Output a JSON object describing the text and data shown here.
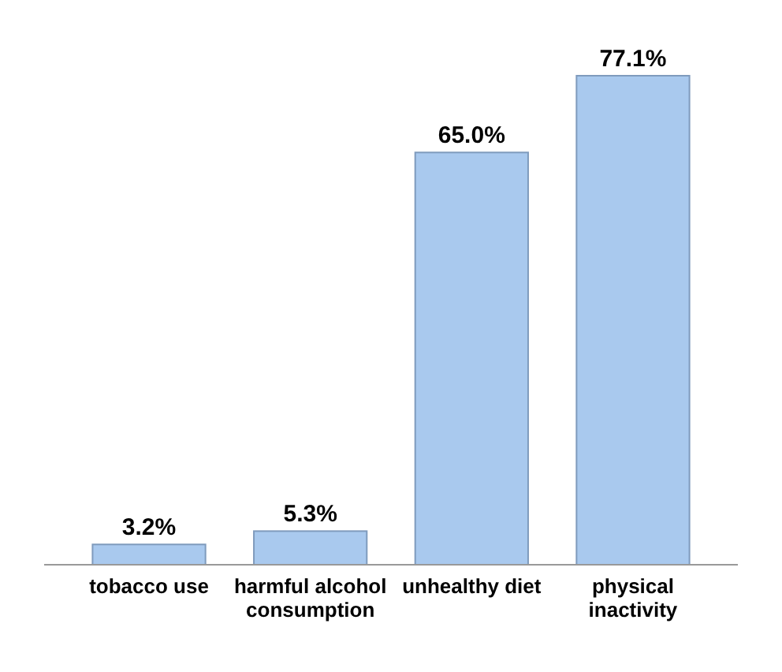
{
  "chart_data": {
    "type": "bar",
    "categories": [
      "tobacco use",
      "harmful alcohol consumption",
      "unhealthy diet",
      "physical inactivity"
    ],
    "values": [
      3.2,
      5.3,
      65.0,
      77.1
    ],
    "value_labels": [
      "3.2%",
      "5.3%",
      "65.0%",
      "77.1%"
    ],
    "color": "#a9c9ee"
  }
}
